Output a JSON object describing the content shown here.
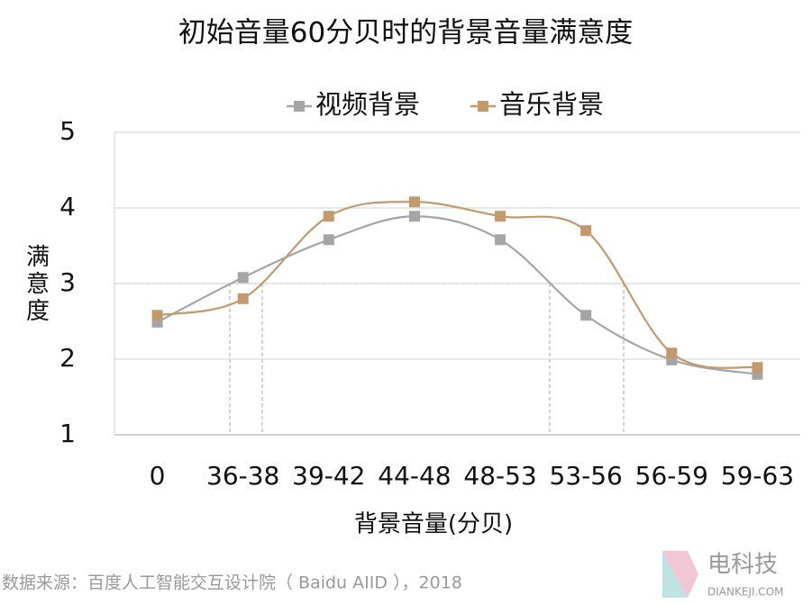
{
  "chart_data": {
    "type": "line",
    "title": "初始音量60分贝时的背景音量满意度",
    "x_label": "背景音量(分贝)",
    "y_label": "满意度",
    "categories": [
      "0",
      "36-38",
      "39-42",
      "44-48",
      "48-53",
      "53-56",
      "56-59",
      "59-63"
    ],
    "series": [
      {
        "name": "视频背景",
        "color": "#a5a5a5",
        "values": [
          2.49,
          3.08,
          3.58,
          3.89,
          3.58,
          2.58,
          1.99,
          1.8
        ]
      },
      {
        "name": "音乐背景",
        "color": "#c49a6c",
        "values": [
          2.58,
          2.8,
          3.89,
          4.08,
          3.89,
          3.7,
          2.08,
          1.89
        ]
      }
    ],
    "ylim": [
      1,
      5
    ],
    "yticks": [
      1,
      2,
      3,
      4,
      5
    ],
    "grid": true,
    "smooth": true,
    "legend": "top",
    "source": "数据来源：百度人工智能交互设计院（ Baidu AIID ），2018",
    "watermark": [
      "电科技",
      "DIANKEJI.COM"
    ]
  }
}
